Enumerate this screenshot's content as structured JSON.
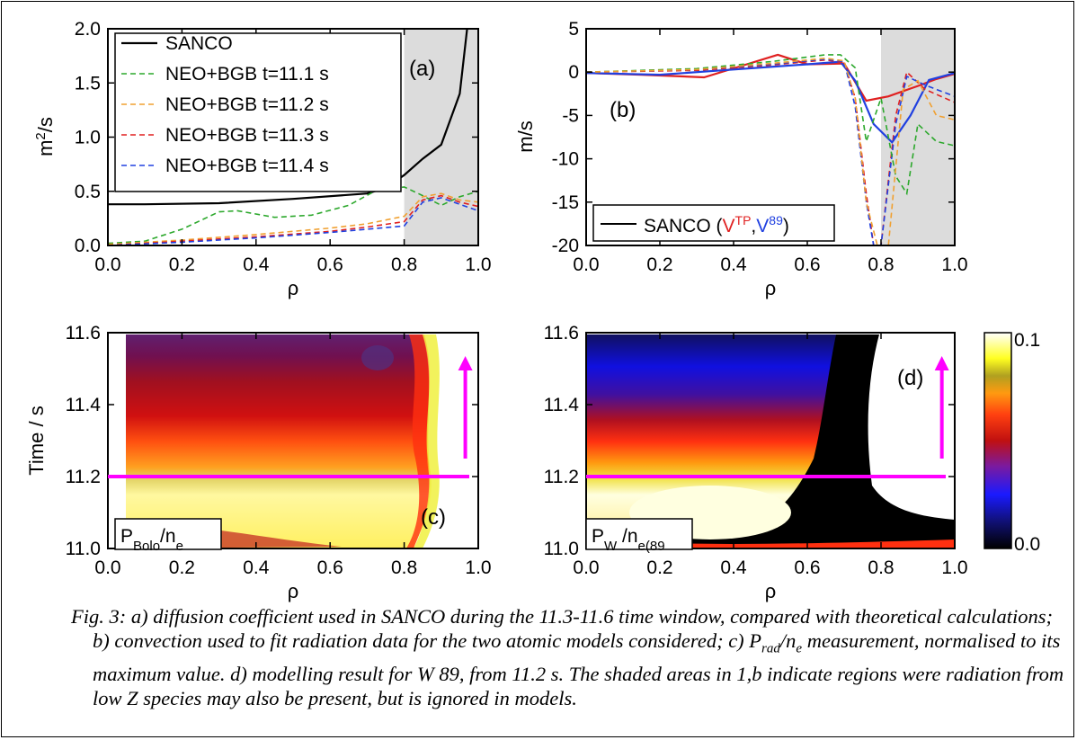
{
  "chart_data": [
    {
      "type": "line",
      "panel": "(a)",
      "xlabel": "ρ",
      "ylabel_base": "m",
      "ylabel_sup": "2",
      "ylabel_rest": "/s",
      "xlim": [
        0,
        1
      ],
      "ylim": [
        0,
        2
      ],
      "xticks": [
        "0.0",
        "0.2",
        "0.4",
        "0.6",
        "0.8",
        "1.0"
      ],
      "yticks": [
        "0.0",
        "0.5",
        "1.0",
        "1.5",
        "2.0"
      ],
      "shaded_region": [
        0.8,
        1.0
      ],
      "legend_position": "top-left",
      "series": [
        {
          "name": "SANCO",
          "color": "#000000",
          "dash": "solid",
          "x": [
            0,
            0.1,
            0.3,
            0.5,
            0.7,
            0.75,
            0.8,
            0.85,
            0.9,
            0.95,
            0.97
          ],
          "y": [
            0.38,
            0.38,
            0.39,
            0.43,
            0.48,
            0.53,
            0.65,
            0.8,
            0.93,
            1.4,
            2.0
          ]
        },
        {
          "name": "NEO+BGB t=11.1 s",
          "color": "#2ca82c",
          "dash": "dashed",
          "x": [
            0,
            0.1,
            0.2,
            0.3,
            0.35,
            0.45,
            0.55,
            0.65,
            0.72,
            0.8,
            0.85,
            0.9,
            0.95,
            1.0
          ],
          "y": [
            0.02,
            0.04,
            0.15,
            0.31,
            0.32,
            0.26,
            0.28,
            0.37,
            0.5,
            0.54,
            0.46,
            0.37,
            0.45,
            0.5
          ]
        },
        {
          "name": "NEO+BGB t=11.2 s",
          "color": "#f0a030",
          "dash": "dashed",
          "x": [
            0,
            0.2,
            0.4,
            0.6,
            0.7,
            0.8,
            0.85,
            0.9,
            0.95,
            1.0
          ],
          "y": [
            0.01,
            0.05,
            0.1,
            0.16,
            0.2,
            0.27,
            0.45,
            0.48,
            0.42,
            0.4
          ]
        },
        {
          "name": "NEO+BGB t=11.3 s",
          "color": "#e02020",
          "dash": "dashed",
          "x": [
            0,
            0.2,
            0.4,
            0.6,
            0.7,
            0.8,
            0.85,
            0.9,
            0.95,
            1.0
          ],
          "y": [
            0.0,
            0.04,
            0.08,
            0.13,
            0.17,
            0.22,
            0.42,
            0.46,
            0.4,
            0.36
          ]
        },
        {
          "name": "NEO+BGB t=11.4 s",
          "color": "#2040e0",
          "dash": "dashed",
          "x": [
            0,
            0.2,
            0.4,
            0.6,
            0.7,
            0.8,
            0.85,
            0.9,
            0.95,
            1.0
          ],
          "y": [
            0.0,
            0.03,
            0.07,
            0.12,
            0.15,
            0.18,
            0.4,
            0.44,
            0.38,
            0.32
          ]
        }
      ]
    },
    {
      "type": "line",
      "panel": "(b)",
      "xlabel": "ρ",
      "ylabel": "m/s",
      "xlim": [
        0,
        1
      ],
      "ylim": [
        -20,
        5
      ],
      "xticks": [
        "0.0",
        "0.2",
        "0.4",
        "0.6",
        "0.8",
        "1.0"
      ],
      "yticks": [
        "5",
        "0",
        "-5",
        "-10",
        "-15",
        "-20"
      ],
      "shaded_region": [
        0.8,
        1.0
      ],
      "legend": {
        "prefix": "SANCO (",
        "tp": "V",
        "tp_sup": "TP",
        "sep": ",",
        "v89": "V",
        "v89_sup": "89",
        "suffix": ")"
      },
      "legend_position": "bottom-left",
      "series": [
        {
          "name": "V^TP",
          "color": "#e02020",
          "dash": "solid",
          "x": [
            0,
            0.15,
            0.32,
            0.42,
            0.52,
            0.6,
            0.7,
            0.76,
            0.82,
            0.9,
            0.95,
            1.0
          ],
          "y": [
            -0.1,
            -0.3,
            -0.6,
            0.7,
            2.0,
            0.9,
            1.0,
            -3.3,
            -2.8,
            -1.6,
            -0.8,
            -0.2
          ]
        },
        {
          "name": "V^89",
          "color": "#2040e0",
          "dash": "solid",
          "x": [
            0,
            0.2,
            0.4,
            0.5,
            0.6,
            0.69,
            0.73,
            0.78,
            0.83,
            0.88,
            0.93,
            1.0
          ],
          "y": [
            -0.1,
            -0.3,
            0.3,
            0.6,
            0.9,
            1.2,
            -1.0,
            -6.0,
            -8.1,
            -5.0,
            -0.9,
            -0.1
          ]
        },
        {
          "name": "TP dashed",
          "color": "#e02020",
          "dash": "dashed",
          "x": [
            0,
            0.3,
            0.5,
            0.65,
            0.7,
            0.73,
            0.76,
            0.78,
            0.8,
            0.84,
            0.87,
            0.92,
            1.0
          ],
          "y": [
            0,
            0.2,
            0.8,
            1.4,
            1.1,
            -3,
            -14,
            -20.5,
            -20.5,
            -5,
            0,
            -2,
            -3.5
          ]
        },
        {
          "name": "89 dashed",
          "color": "#2040e0",
          "dash": "dashed",
          "x": [
            0,
            0.3,
            0.5,
            0.65,
            0.7,
            0.73,
            0.76,
            0.78,
            0.8,
            0.84,
            0.87,
            0.92,
            1.0
          ],
          "y": [
            0,
            0.3,
            0.9,
            1.5,
            1.2,
            -4,
            -15,
            -20.5,
            -20.5,
            -6,
            -0.5,
            -1.5,
            -2.8
          ]
        },
        {
          "name": "green dashed",
          "color": "#2ca82c",
          "dash": "dashed",
          "x": [
            0,
            0.3,
            0.5,
            0.65,
            0.69,
            0.73,
            0.76,
            0.8,
            0.84,
            0.87,
            0.9,
            0.95,
            1.0
          ],
          "y": [
            0,
            0.4,
            1.2,
            2.0,
            2.0,
            0.5,
            -8,
            -3,
            -12,
            -14,
            -6,
            -8,
            -8.5
          ]
        },
        {
          "name": "orange dashed",
          "color": "#f0a030",
          "dash": "dashed",
          "x": [
            0,
            0.3,
            0.5,
            0.65,
            0.7,
            0.73,
            0.76,
            0.79,
            0.82,
            0.86,
            0.9,
            0.95,
            1.0
          ],
          "y": [
            0,
            0.3,
            1.0,
            1.6,
            1.3,
            -3,
            -15,
            -20.5,
            -20.5,
            -2,
            -1,
            -5,
            -5.5
          ]
        }
      ]
    },
    {
      "type": "heatmap",
      "panel": "(c)",
      "label": "P",
      "label_sub": "Bolo",
      "label_mid": "/n",
      "label_sub2": "e",
      "xlabel": "ρ",
      "ylabel": "Time / s",
      "xlim": [
        0,
        1
      ],
      "ylim": [
        11.0,
        11.6
      ],
      "xticks": [
        "0.0",
        "0.2",
        "0.4",
        "0.6",
        "0.8",
        "1.0"
      ],
      "yticks": [
        "11.0",
        "11.2",
        "11.4",
        "11.6"
      ],
      "hline_time": 11.2,
      "arrow_from": 11.25,
      "arrow_to": 11.5,
      "accent": "#ff00ff"
    },
    {
      "type": "heatmap",
      "panel": "(d)",
      "label": "P",
      "label_sub": "W",
      "label_mid": " /n",
      "label_sub2": "e(89",
      "xlabel": "ρ",
      "xlim": [
        0,
        1
      ],
      "ylim": [
        11.0,
        11.6
      ],
      "xticks": [
        "0.0",
        "0.2",
        "0.4",
        "0.6",
        "0.8",
        "1.0"
      ],
      "yticks": [
        "11.0",
        "11.2",
        "11.4",
        "11.6"
      ],
      "hline_time": 11.2,
      "arrow_from": 11.25,
      "arrow_to": 11.5,
      "colorbar_ticks": [
        "0.1",
        "0.0"
      ]
    }
  ],
  "caption": {
    "fig": "Fig. 3:",
    "text1": " a) diffusion coefficient used in SANCO during the 11.3-11.6 time window, compared with theoretical calculations; b) convection used to fit radiation data for the two atomic models considered; c) P",
    "sub_rad": "rad",
    "mid": "/n",
    "sub_e": "e",
    "text2": " measurement, normalised to its maximum value. d) modelling result for W 89, from 11.2 s. The shaded areas in 1,b indicate regions were radiation from low Z species may also be present, but is ignored in models."
  }
}
